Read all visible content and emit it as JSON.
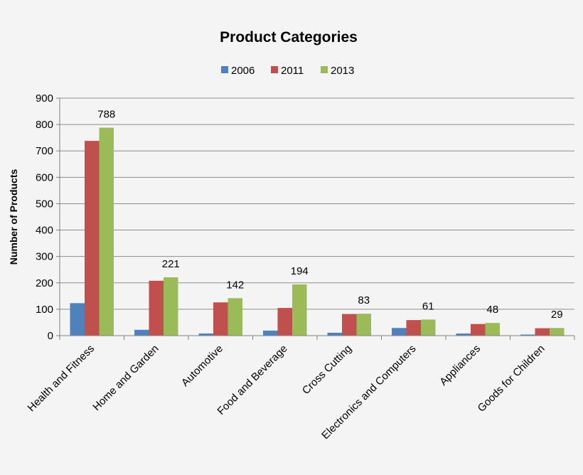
{
  "chart_data": {
    "type": "bar",
    "title": "Product Categories",
    "xlabel": "",
    "ylabel": "Number of Products",
    "ylim": [
      0,
      900
    ],
    "yticks": [
      0,
      100,
      200,
      300,
      400,
      500,
      600,
      700,
      800,
      900
    ],
    "grid": true,
    "legend_position": "top-center",
    "categories": [
      "Health and Fitness",
      "Home and Garden",
      "Automotive",
      "Food and Beverage",
      "Cross Cutting",
      "Electronics and Computers",
      "Appliances",
      "Goods for Children"
    ],
    "series": [
      {
        "name": "2006",
        "color": "#4f81bd",
        "values": [
          123,
          22,
          8,
          19,
          11,
          29,
          8,
          4
        ]
      },
      {
        "name": "2011",
        "color": "#c0504d",
        "values": [
          738,
          208,
          126,
          105,
          82,
          59,
          44,
          28
        ]
      },
      {
        "name": "2013",
        "color": "#9bbb59",
        "values": [
          788,
          221,
          142,
          194,
          83,
          61,
          48,
          29
        ]
      }
    ],
    "data_labels": {
      "series": "2013",
      "values": [
        "788",
        "221",
        "142",
        "194",
        "83",
        "61",
        "48",
        "29"
      ]
    }
  }
}
